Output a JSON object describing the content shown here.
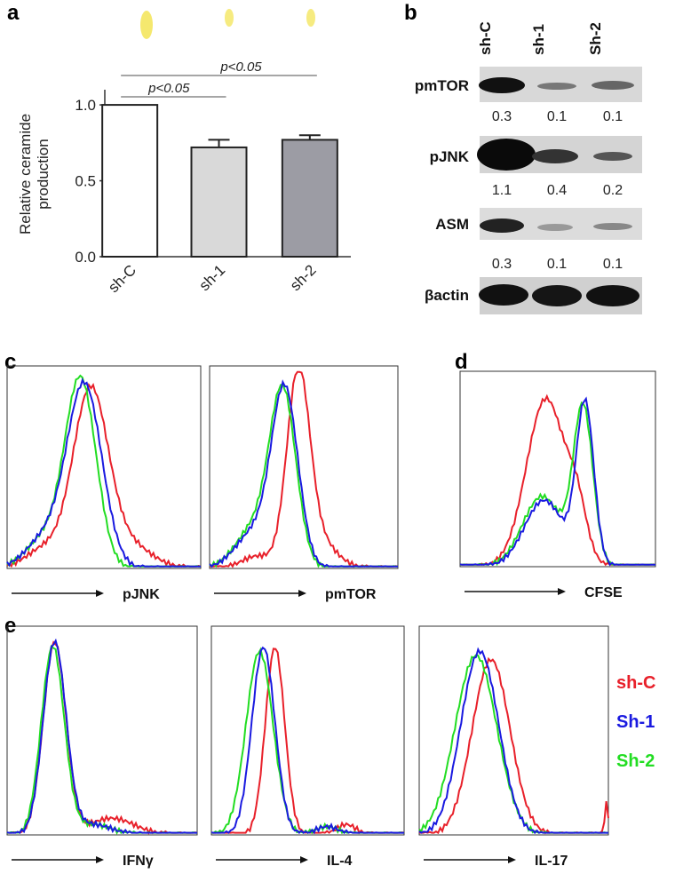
{
  "panel_labels": [
    "a",
    "b",
    "c",
    "d",
    "e"
  ],
  "chart_data": {
    "type": "bar",
    "y_label": "Relative ceramide production",
    "categories": [
      "sh-C",
      "sh-1",
      "sh-2"
    ],
    "values": [
      1.0,
      0.72,
      0.77
    ],
    "errors": [
      0,
      0.05,
      0.03
    ],
    "colors": [
      "#ffffff",
      "#d9d9d9",
      "#9c9ca4"
    ],
    "ylim": [
      0,
      1.1
    ],
    "yticks": [
      {
        "value": 0,
        "label": "0.0"
      },
      {
        "value": 0.5,
        "label": "0.5"
      },
      {
        "value": 1,
        "label": "1.0"
      }
    ],
    "annotations": [
      {
        "text": "p<0.05",
        "from": 0,
        "to": 1
      },
      {
        "text": "p<0.05",
        "from": 0,
        "to": 2
      }
    ]
  },
  "blot": {
    "columns": [
      "sh-C",
      "sh-1",
      "Sh-2"
    ],
    "rows": [
      {
        "label": "pmTOR",
        "values": [
          0.3,
          0.1,
          0.1
        ]
      },
      {
        "label": "pJNK",
        "values": [
          1.1,
          0.4,
          0.2
        ]
      },
      {
        "label": "ASM",
        "values": [
          0.3,
          0.1,
          0.1
        ]
      },
      {
        "label": "βactin"
      }
    ]
  },
  "histograms": {
    "panels": [
      {
        "x_label": "pJNK"
      },
      {
        "x_label": "pmTOR"
      },
      {
        "x_label": "CFSE"
      },
      {
        "x_label": "IFNγ"
      },
      {
        "x_label": "IL-4"
      },
      {
        "x_label": "IL-17"
      }
    ],
    "legend": [
      {
        "name": "sh-C",
        "color": "#e8202a"
      },
      {
        "name": "Sh-1",
        "color": "#1a1ae0"
      },
      {
        "name": "Sh-2",
        "color": "#22dd22"
      }
    ]
  }
}
